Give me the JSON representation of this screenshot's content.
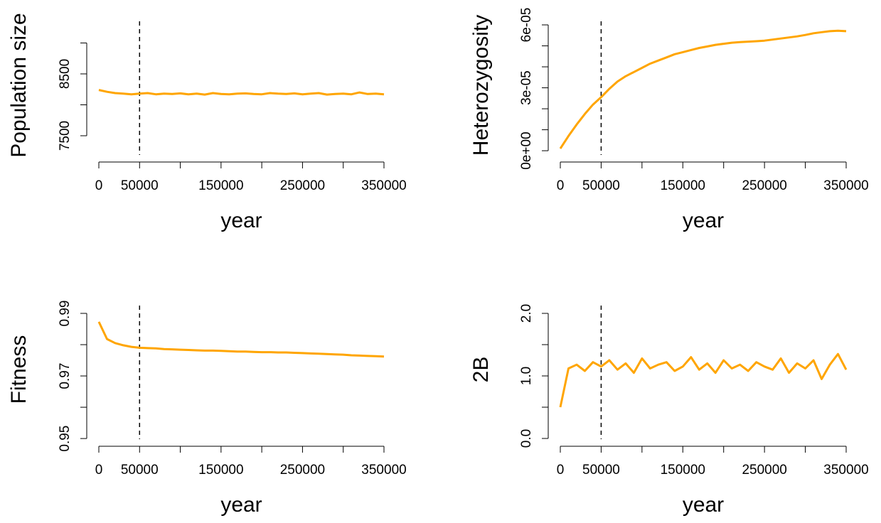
{
  "chart_data": [
    {
      "type": "line",
      "xlabel": "year",
      "ylabel": "Population size",
      "color": "#FFA500",
      "x": [
        0,
        10000,
        20000,
        30000,
        40000,
        50000,
        60000,
        70000,
        80000,
        90000,
        100000,
        110000,
        120000,
        130000,
        140000,
        150000,
        160000,
        170000,
        180000,
        190000,
        200000,
        210000,
        220000,
        230000,
        240000,
        250000,
        260000,
        270000,
        280000,
        290000,
        300000,
        310000,
        320000,
        330000,
        340000,
        350000
      ],
      "values": [
        8240,
        8210,
        8190,
        8180,
        8170,
        8180,
        8190,
        8170,
        8180,
        8175,
        8185,
        8170,
        8180,
        8165,
        8190,
        8175,
        8170,
        8180,
        8185,
        8175,
        8170,
        8190,
        8180,
        8175,
        8185,
        8170,
        8180,
        8190,
        8165,
        8175,
        8180,
        8170,
        8200,
        8175,
        8180,
        8170
      ],
      "xlim": [
        0,
        350000
      ],
      "xticks": [
        0,
        50000,
        150000,
        250000,
        350000
      ],
      "xminor_ticks": [
        100000,
        200000,
        300000
      ],
      "ylim": [
        7190,
        9350
      ],
      "yticks": [
        7500,
        8500
      ],
      "yminor_ticks": [
        8000,
        9000
      ],
      "vline": 50000
    },
    {
      "type": "line",
      "xlabel": "year",
      "ylabel": "Heterozygosity",
      "color": "#FFA500",
      "x": [
        0,
        10000,
        20000,
        30000,
        40000,
        50000,
        60000,
        70000,
        80000,
        90000,
        100000,
        110000,
        120000,
        130000,
        140000,
        150000,
        160000,
        170000,
        180000,
        190000,
        200000,
        210000,
        220000,
        230000,
        240000,
        250000,
        260000,
        270000,
        280000,
        290000,
        300000,
        310000,
        320000,
        330000,
        340000,
        350000
      ],
      "values": [
        1e-06,
        7e-06,
        1.25e-05,
        1.75e-05,
        2.2e-05,
        2.55e-05,
        2.95e-05,
        3.3e-05,
        3.55e-05,
        3.75e-05,
        3.95e-05,
        4.15e-05,
        4.3e-05,
        4.45e-05,
        4.6e-05,
        4.7e-05,
        4.8e-05,
        4.9e-05,
        4.97e-05,
        5.05e-05,
        5.1e-05,
        5.15e-05,
        5.18e-05,
        5.2e-05,
        5.22e-05,
        5.25e-05,
        5.3e-05,
        5.35e-05,
        5.4e-05,
        5.45e-05,
        5.52e-05,
        5.6e-05,
        5.65e-05,
        5.7e-05,
        5.72e-05,
        5.7e-05
      ],
      "xlim": [
        0,
        350000
      ],
      "xticks": [
        0,
        50000,
        150000,
        250000,
        350000
      ],
      "xminor_ticks": [
        100000,
        200000,
        300000
      ],
      "ylim": [
        -2e-06,
        6.17e-05
      ],
      "yticks": [
        {
          "value": 0,
          "label": "0e+00"
        },
        {
          "value": 3e-05,
          "label": "3e-05"
        },
        {
          "value": 6e-05,
          "label": "6e-05"
        }
      ],
      "yminor_ticks": [
        1e-05,
        2e-05,
        4e-05,
        5e-05
      ],
      "vline": 50000
    },
    {
      "type": "line",
      "xlabel": "year",
      "ylabel": "Fitness",
      "color": "#FFA500",
      "x": [
        0,
        10000,
        20000,
        30000,
        40000,
        50000,
        60000,
        70000,
        80000,
        90000,
        100000,
        110000,
        120000,
        130000,
        140000,
        150000,
        160000,
        170000,
        180000,
        190000,
        200000,
        210000,
        220000,
        230000,
        240000,
        250000,
        260000,
        270000,
        280000,
        290000,
        300000,
        310000,
        320000,
        330000,
        340000,
        350000
      ],
      "values": [
        0.9873,
        0.9818,
        0.9805,
        0.9798,
        0.9793,
        0.979,
        0.9789,
        0.9788,
        0.9786,
        0.9785,
        0.9784,
        0.9783,
        0.9782,
        0.9781,
        0.9781,
        0.978,
        0.9779,
        0.9778,
        0.9778,
        0.9777,
        0.9776,
        0.9776,
        0.9775,
        0.9775,
        0.9774,
        0.9773,
        0.9772,
        0.9771,
        0.977,
        0.9769,
        0.9768,
        0.9766,
        0.9765,
        0.9764,
        0.9763,
        0.9762
      ],
      "xlim": [
        0,
        350000
      ],
      "xticks": [
        0,
        50000,
        150000,
        250000,
        350000
      ],
      "xminor_ticks": [
        100000,
        200000,
        300000
      ],
      "ylim": [
        0.9498,
        0.9925
      ],
      "yticks": [
        0.95,
        0.97,
        0.99
      ],
      "yminor_ticks": [
        0.96,
        0.98
      ],
      "vline": 50000
    },
    {
      "type": "line",
      "xlabel": "year",
      "ylabel": "2B",
      "color": "#FFA500",
      "x": [
        0,
        10000,
        20000,
        30000,
        40000,
        50000,
        60000,
        70000,
        80000,
        90000,
        100000,
        110000,
        120000,
        130000,
        140000,
        150000,
        160000,
        170000,
        180000,
        190000,
        200000,
        210000,
        220000,
        230000,
        240000,
        250000,
        260000,
        270000,
        280000,
        290000,
        300000,
        310000,
        320000,
        330000,
        340000,
        350000
      ],
      "values": [
        0.5,
        1.12,
        1.18,
        1.08,
        1.22,
        1.15,
        1.25,
        1.1,
        1.2,
        1.05,
        1.28,
        1.12,
        1.18,
        1.22,
        1.08,
        1.15,
        1.3,
        1.1,
        1.2,
        1.05,
        1.25,
        1.12,
        1.18,
        1.08,
        1.22,
        1.15,
        1.1,
        1.28,
        1.05,
        1.2,
        1.12,
        1.25,
        0.95,
        1.18,
        1.35,
        1.1
      ],
      "xlim": [
        0,
        350000
      ],
      "xticks": [
        0,
        50000,
        150000,
        250000,
        350000
      ],
      "xminor_ticks": [
        100000,
        200000,
        300000
      ],
      "ylim": [
        -0.011,
        2.125
      ],
      "yticks": [
        {
          "value": 0,
          "label": "0.0"
        },
        {
          "value": 1,
          "label": "1.0"
        },
        {
          "value": 2,
          "label": "2.0"
        }
      ],
      "yminor_ticks": [
        0.5,
        1.5
      ],
      "vline": 50000
    }
  ]
}
